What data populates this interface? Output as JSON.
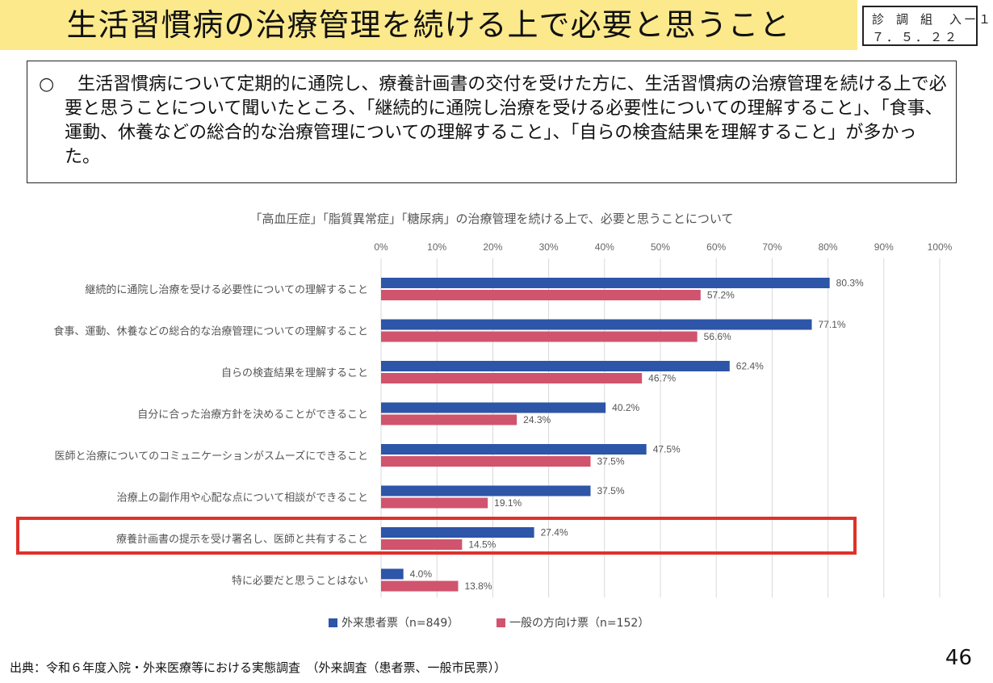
{
  "header": {
    "title": "生活習慣病の治療管理を続ける上で必要と思うこと",
    "doc_code_line1": "診 調 組　入ー１",
    "doc_code_line2": "７．５．２２"
  },
  "summary": {
    "bullet": "○",
    "text": "生活習慣病について定期的に通院し、療養計画書の交付を受けた方に、生活習慣病の治療管理を続ける上で必要と思うことについて聞いたところ、「継続的に通院し治療を受ける必要性についての理解すること」、「食事、運動、休養などの総合的な治療管理についての理解すること」、「自らの検査結果を理解すること」が多かった。"
  },
  "chart_data": {
    "type": "bar",
    "orientation": "horizontal",
    "title": "「高血圧症」「脂質異常症」「糖尿病」の治療管理を続ける上で、必要と思うことについて",
    "categories": [
      "継続的に通院し治療を受ける必要性についての理解すること",
      "食事、運動、休養などの総合的な治療管理についての理解すること",
      "自らの検査結果を理解すること",
      "自分に合った治療方針を決めることができること",
      "医師と治療についてのコミュニケーションがスムーズにできること",
      "治療上の副作用や心配な点について相談ができること",
      "療養計画書の提示を受け署名し、医師と共有すること",
      "特に必要だと思うことはない"
    ],
    "series": [
      {
        "name": "外来患者票（n=849）",
        "color": "#2d55a8",
        "values": [
          80.3,
          77.1,
          62.4,
          40.2,
          47.5,
          37.5,
          27.4,
          4.0
        ]
      },
      {
        "name": "一般の方向け票（n=152）",
        "color": "#d0546e",
        "values": [
          57.2,
          56.6,
          46.7,
          24.3,
          37.5,
          19.1,
          14.5,
          13.8
        ]
      }
    ],
    "xlim": [
      0,
      100
    ],
    "xticks": [
      "0%",
      "10%",
      "20%",
      "30%",
      "40%",
      "50%",
      "60%",
      "70%",
      "80%",
      "90%",
      "100%"
    ],
    "value_suffix": "%",
    "grid": true,
    "legend_position": "bottom",
    "highlighted_category": "療養計画書の提示を受け署名し、医師と共有すること"
  },
  "footer": {
    "source": "出典：令和６年度入院・外来医療等における実態調査　（外来調査（患者票、一般市民票））",
    "page_number": "46"
  }
}
